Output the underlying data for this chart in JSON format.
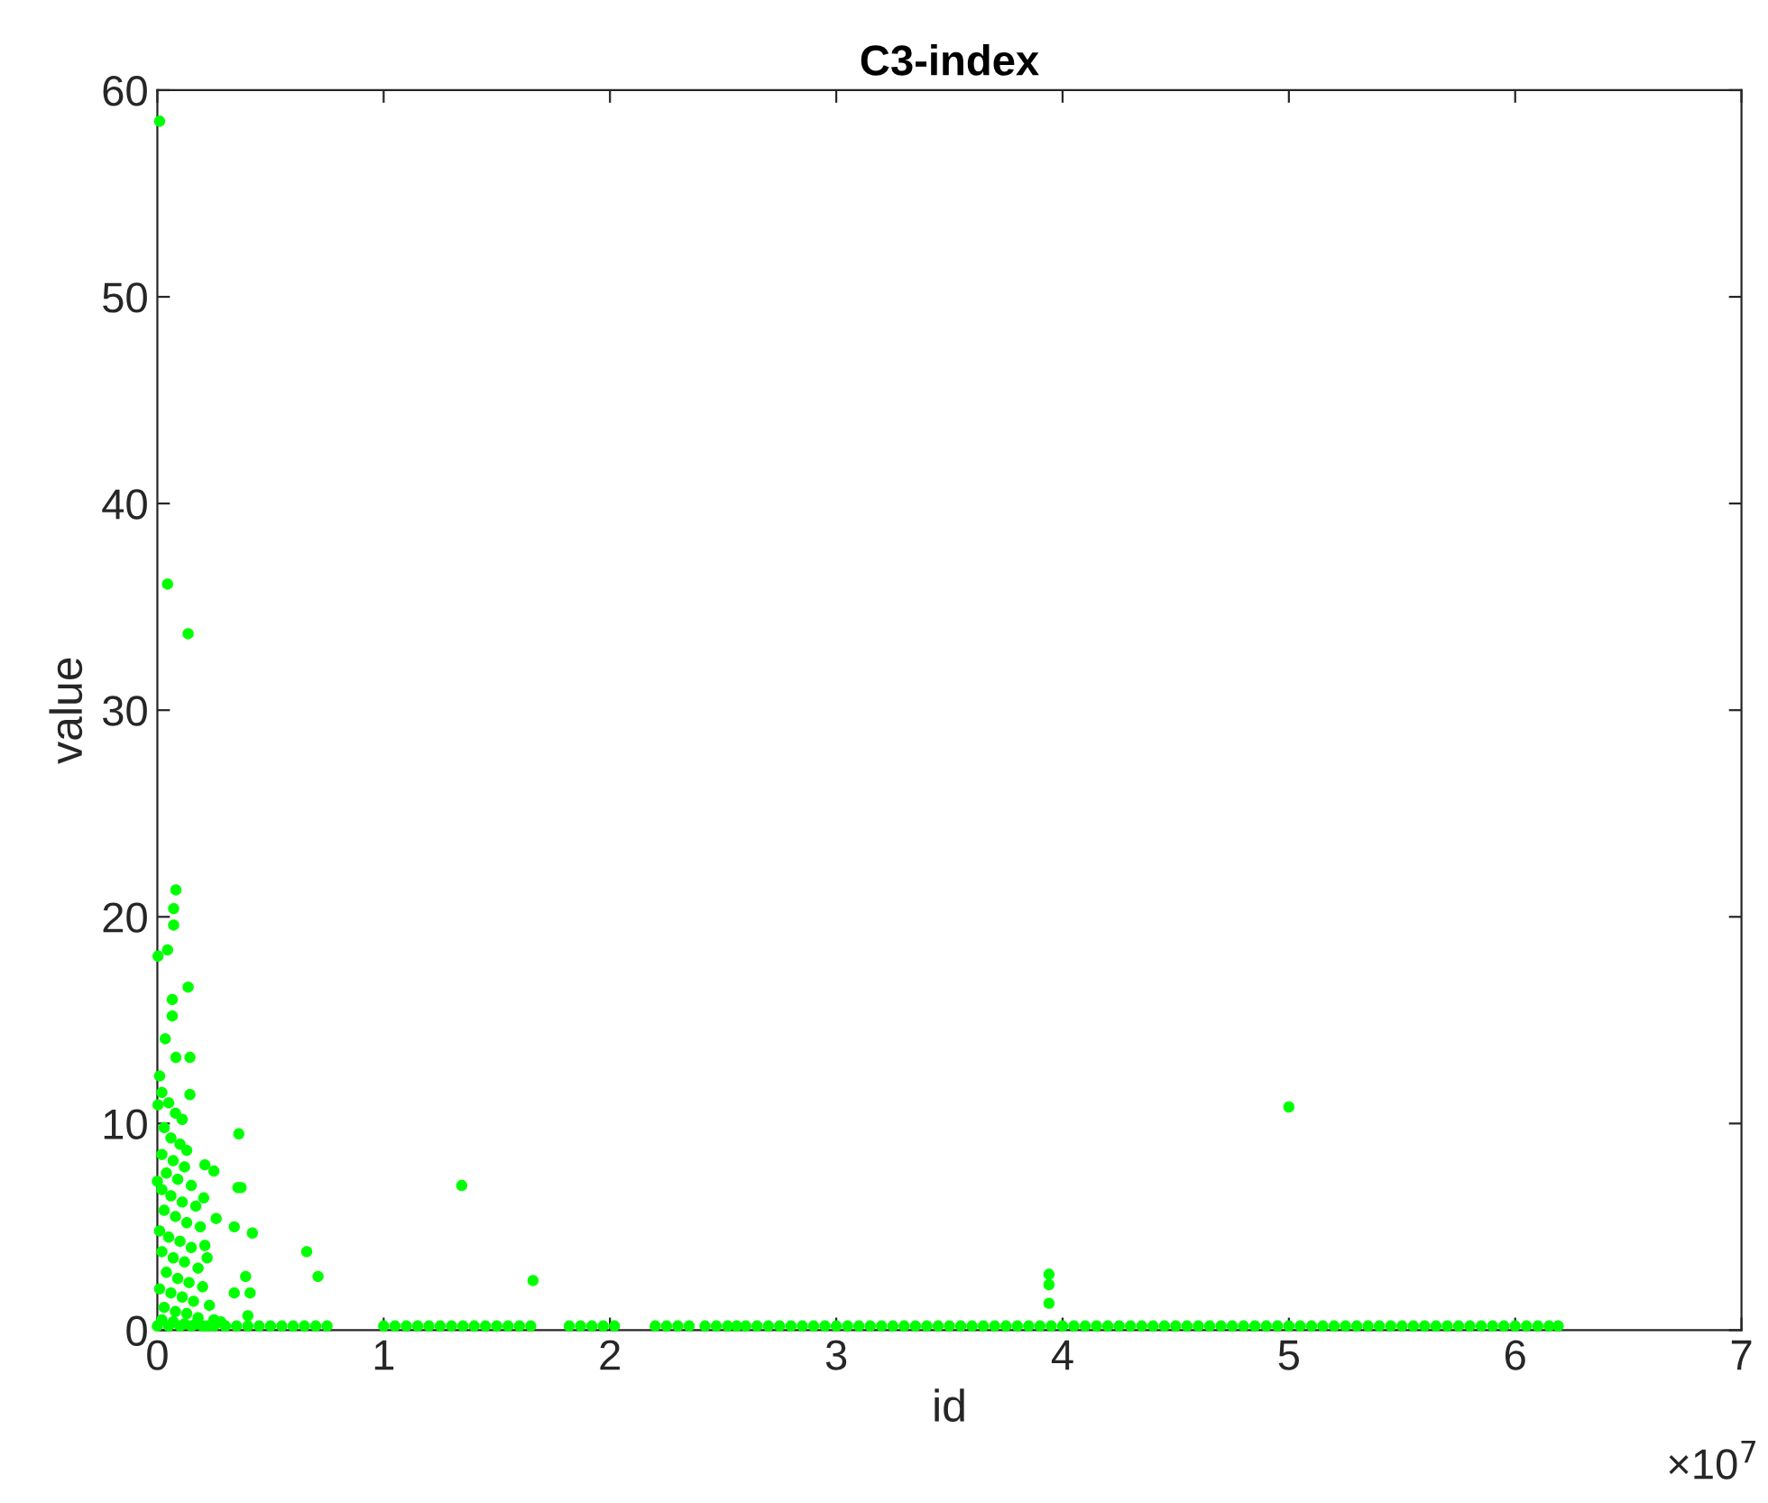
{
  "chart_data": {
    "type": "scatter",
    "title": "C3-index",
    "xlabel": "id",
    "ylabel": "value",
    "annotations": [
      "×10$^{7}$"
    ],
    "xlim": [
      0,
      7
    ],
    "ylim": [
      0,
      60
    ],
    "xticks": [
      0,
      1,
      2,
      3,
      4,
      5,
      6,
      7
    ],
    "yticks": [
      0,
      10,
      20,
      30,
      40,
      50,
      60
    ],
    "grid": false,
    "marker": "circle",
    "series": [
      {
        "color": "#00ff00",
        "x": [
          0.01,
          0.045,
          0.136,
          0.082,
          0.072,
          0.072,
          0.003,
          0.045,
          0.136,
          0.066,
          0.066,
          0.035,
          0.082,
          0.144,
          0.01,
          0.144,
          0.003,
          0.36,
          0.21,
          0.25,
          0.356,
          0.37,
          1.345,
          0.205,
          0,
          0.26,
          0.34,
          0.42,
          0.66,
          0.71,
          0.39,
          0.34,
          0.41,
          0.4,
          0.21,
          0.22,
          1.66,
          3.94,
          3.94,
          3.94,
          5.0,
          0.02,
          0.05,
          0.08,
          0.11,
          0.03,
          0.06,
          0.1,
          0.13,
          0.02,
          0.07,
          0.12,
          0.04,
          0.09,
          0.15,
          0.02,
          0.06,
          0.11,
          0.17,
          0.03,
          0.08,
          0.13,
          0.19,
          0.01,
          0.05,
          0.1,
          0.15,
          0.02,
          0.07,
          0.12,
          0.18,
          0.04,
          0.09,
          0.14,
          0.2,
          0.01,
          0.06,
          0.11,
          0.16,
          0.23,
          0.03,
          0.08,
          0.13,
          0.18,
          0.25,
          0.02,
          0.07,
          0.12,
          0.17,
          0.22,
          0.28,
          0.3,
          0,
          0.05,
          0.1,
          0.15,
          0.2,
          0.25,
          0.3,
          0.35,
          0.4,
          0.45,
          0.5,
          0.55,
          0.6,
          0.65,
          0.7,
          0.75,
          1.0,
          1.05,
          1.1,
          1.15,
          1.2,
          1.25,
          1.3,
          1.35,
          1.4,
          1.45,
          1.5,
          1.55,
          1.6,
          1.65,
          1.82,
          1.87,
          1.92,
          1.97,
          2.02,
          2.2,
          2.25,
          2.3,
          2.35,
          2.42,
          2.47,
          2.52,
          2.56,
          2.6,
          2.65,
          2.7,
          2.75,
          2.8,
          2.85,
          2.9,
          2.95,
          3.0,
          3.05,
          3.1,
          3.15,
          3.2,
          3.25,
          3.3,
          3.35,
          3.4,
          3.45,
          3.5,
          3.55,
          3.6,
          3.65,
          3.7,
          3.75,
          3.8,
          3.85,
          3.9,
          3.95,
          4.0,
          4.05,
          4.1,
          4.15,
          4.2,
          4.25,
          4.3,
          4.35,
          4.4,
          4.45,
          4.5,
          4.55,
          4.6,
          4.65,
          4.7,
          4.75,
          4.8,
          4.85,
          4.9,
          4.95,
          5.0,
          5.05,
          5.1,
          5.15,
          5.2,
          5.25,
          5.3,
          5.35,
          5.4,
          5.45,
          5.5,
          5.55,
          5.6,
          5.65,
          5.7,
          5.75,
          5.8,
          5.85,
          5.9,
          5.95,
          6.0,
          6.05,
          6.1,
          6.15,
          6.19
        ],
        "values": [
          58.5,
          36.1,
          33.7,
          21.3,
          20.4,
          19.6,
          18.1,
          18.4,
          16.6,
          16.0,
          15.2,
          14.1,
          13.2,
          13.2,
          12.3,
          11.4,
          10.9,
          9.5,
          8.0,
          7.7,
          6.9,
          6.9,
          7.0,
          6.4,
          7.2,
          5.4,
          5.0,
          4.7,
          3.8,
          2.6,
          2.6,
          1.8,
          1.8,
          0.7,
          4.1,
          3.5,
          2.4,
          2.7,
          2.2,
          1.3,
          10.8,
          11.5,
          11.0,
          10.5,
          10.2,
          9.8,
          9.3,
          9.0,
          8.7,
          8.5,
          8.2,
          7.9,
          7.6,
          7.3,
          7.0,
          6.8,
          6.5,
          6.2,
          6.0,
          5.8,
          5.5,
          5.2,
          5.0,
          4.8,
          4.5,
          4.3,
          4.0,
          3.8,
          3.5,
          3.3,
          3.0,
          2.8,
          2.5,
          2.3,
          2.1,
          2.0,
          1.8,
          1.6,
          1.4,
          1.2,
          1.1,
          0.9,
          0.8,
          0.6,
          0.5,
          0.5,
          0.4,
          0.3,
          0.3,
          0.2,
          0.4,
          0.2,
          0.2,
          0.2,
          0.2,
          0.2,
          0.2,
          0.2,
          0.2,
          0.2,
          0.2,
          0.2,
          0.2,
          0.2,
          0.2,
          0.2,
          0.2,
          0.2,
          0.2,
          0.2,
          0.2,
          0.2,
          0.2,
          0.2,
          0.2,
          0.2,
          0.2,
          0.2,
          0.2,
          0.2,
          0.2,
          0.2,
          0.2,
          0.2,
          0.2,
          0.2,
          0.2,
          0.2,
          0.2,
          0.2,
          0.2,
          0.2,
          0.2,
          0.2,
          0.2,
          0.2,
          0.2,
          0.2,
          0.2,
          0.2,
          0.2,
          0.2,
          0.2,
          0.2,
          0.2,
          0.2,
          0.2,
          0.2,
          0.2,
          0.2,
          0.2,
          0.2,
          0.2,
          0.2,
          0.2,
          0.2,
          0.2,
          0.2,
          0.2,
          0.2,
          0.2,
          0.2,
          0.2,
          0.2,
          0.2,
          0.2,
          0.2,
          0.2,
          0.2,
          0.2,
          0.2,
          0.2,
          0.2,
          0.2,
          0.2,
          0.2,
          0.2,
          0.2,
          0.2,
          0.2,
          0.2,
          0.2,
          0.2,
          0.2,
          0.2,
          0.2,
          0.2,
          0.2,
          0.2,
          0.2,
          0.2,
          0.2,
          0.2,
          0.2,
          0.2,
          0.2,
          0.2,
          0.2,
          0.2,
          0.2,
          0.2,
          0.2,
          0.2,
          0.2,
          0.2,
          0.2,
          0.2,
          0.2
        ]
      }
    ]
  }
}
